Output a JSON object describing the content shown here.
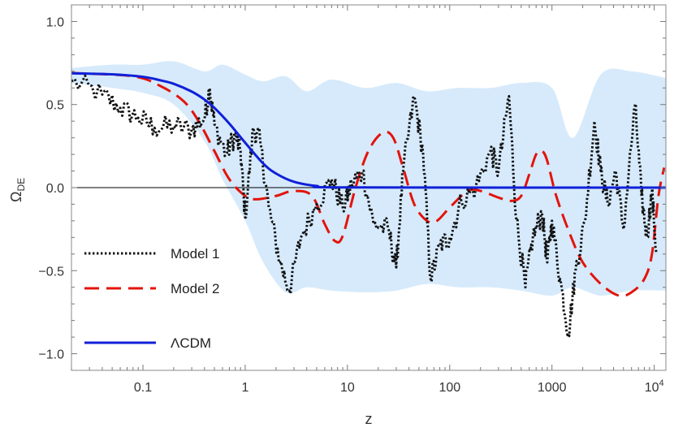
{
  "chart_data": {
    "type": "line",
    "xscale": "log",
    "xlim": [
      0.02,
      13000
    ],
    "ylim": [
      -1.1,
      1.1
    ],
    "xlabel": "z",
    "ylabel_main": "Ω",
    "ylabel_sub": "DE",
    "x_ticks": [
      {
        "value": 0.1,
        "label": "0.1"
      },
      {
        "value": 1,
        "label": "1"
      },
      {
        "value": 10,
        "label": "10"
      },
      {
        "value": 100,
        "label": "100"
      },
      {
        "value": 1000,
        "label": "1000"
      },
      {
        "value": 10000,
        "label": "10",
        "sup": "4"
      }
    ],
    "y_ticks": [
      {
        "value": 1.0,
        "label": "1.0"
      },
      {
        "value": 0.5,
        "label": "0.5"
      },
      {
        "value": 0.0,
        "label": "0.0"
      },
      {
        "value": -0.5,
        "label": "-0.5"
      },
      {
        "value": -1.0,
        "label": "-1.0"
      }
    ],
    "legend_position": "bottom-left",
    "band": {
      "color": "#d6eafb",
      "points": [
        {
          "z": 0.02,
          "lo": 0.63,
          "hi": 0.72
        },
        {
          "z": 0.05,
          "lo": 0.6,
          "hi": 0.74
        },
        {
          "z": 0.1,
          "lo": 0.57,
          "hi": 0.74
        },
        {
          "z": 0.2,
          "lo": 0.5,
          "hi": 0.76
        },
        {
          "z": 0.4,
          "lo": 0.28,
          "hi": 0.7
        },
        {
          "z": 0.6,
          "lo": 0.05,
          "hi": 0.74
        },
        {
          "z": 1.0,
          "lo": -0.2,
          "hi": 0.68
        },
        {
          "z": 1.5,
          "lo": -0.45,
          "hi": 0.64
        },
        {
          "z": 2.5,
          "lo": -0.63,
          "hi": 0.67
        },
        {
          "z": 4,
          "lo": -0.6,
          "hi": 0.58
        },
        {
          "z": 7,
          "lo": -0.62,
          "hi": 0.65
        },
        {
          "z": 15,
          "lo": -0.63,
          "hi": 0.6
        },
        {
          "z": 30,
          "lo": -0.62,
          "hi": 0.63
        },
        {
          "z": 60,
          "lo": -0.58,
          "hi": 0.58
        },
        {
          "z": 120,
          "lo": -0.6,
          "hi": 0.6
        },
        {
          "z": 250,
          "lo": -0.6,
          "hi": 0.6
        },
        {
          "z": 500,
          "lo": -0.62,
          "hi": 0.63
        },
        {
          "z": 1000,
          "lo": -0.65,
          "hi": 0.6
        },
        {
          "z": 1600,
          "lo": -0.6,
          "hi": 0.3
        },
        {
          "z": 3000,
          "lo": -0.65,
          "hi": 0.68
        },
        {
          "z": 6000,
          "lo": -0.62,
          "hi": 0.7
        },
        {
          "z": 13000,
          "lo": -0.62,
          "hi": 0.66
        }
      ]
    },
    "series": [
      {
        "name": "Model 1",
        "color": "#111111",
        "style": "dotted",
        "noise_amplitude": 0.07,
        "points": [
          {
            "z": 0.02,
            "v": 0.64
          },
          {
            "z": 0.04,
            "v": 0.56
          },
          {
            "z": 0.06,
            "v": 0.48
          },
          {
            "z": 0.09,
            "v": 0.42
          },
          {
            "z": 0.13,
            "v": 0.36
          },
          {
            "z": 0.2,
            "v": 0.37
          },
          {
            "z": 0.3,
            "v": 0.35
          },
          {
            "z": 0.4,
            "v": 0.42
          },
          {
            "z": 0.45,
            "v": 0.6
          },
          {
            "z": 0.5,
            "v": 0.38
          },
          {
            "z": 0.65,
            "v": 0.2
          },
          {
            "z": 0.8,
            "v": 0.32
          },
          {
            "z": 0.9,
            "v": 0.22
          },
          {
            "z": 1.0,
            "v": -0.18
          },
          {
            "z": 1.2,
            "v": 0.36
          },
          {
            "z": 1.4,
            "v": 0.28
          },
          {
            "z": 1.7,
            "v": -0.12
          },
          {
            "z": 2.2,
            "v": -0.45
          },
          {
            "z": 2.7,
            "v": -0.62
          },
          {
            "z": 3.5,
            "v": -0.3
          },
          {
            "z": 5,
            "v": -0.1
          },
          {
            "z": 7,
            "v": 0.05
          },
          {
            "z": 9,
            "v": -0.12
          },
          {
            "z": 11,
            "v": 0.02
          },
          {
            "z": 14,
            "v": 0.1
          },
          {
            "z": 18,
            "v": -0.22
          },
          {
            "z": 25,
            "v": -0.25
          },
          {
            "z": 30,
            "v": -0.48
          },
          {
            "z": 35,
            "v": 0.1
          },
          {
            "z": 45,
            "v": 0.55
          },
          {
            "z": 55,
            "v": 0.2
          },
          {
            "z": 65,
            "v": -0.55
          },
          {
            "z": 80,
            "v": -0.35
          },
          {
            "z": 100,
            "v": -0.3
          },
          {
            "z": 130,
            "v": -0.08
          },
          {
            "z": 180,
            "v": 0.0
          },
          {
            "z": 250,
            "v": 0.22
          },
          {
            "z": 300,
            "v": 0.1
          },
          {
            "z": 380,
            "v": 0.55
          },
          {
            "z": 450,
            "v": -0.2
          },
          {
            "z": 550,
            "v": -0.6
          },
          {
            "z": 650,
            "v": -0.3
          },
          {
            "z": 800,
            "v": -0.15
          },
          {
            "z": 900,
            "v": -0.45
          },
          {
            "z": 1000,
            "v": -0.2
          },
          {
            "z": 1200,
            "v": -0.55
          },
          {
            "z": 1450,
            "v": -0.88
          },
          {
            "z": 1700,
            "v": -0.5
          },
          {
            "z": 2100,
            "v": -0.2
          },
          {
            "z": 2600,
            "v": 0.4
          },
          {
            "z": 3000,
            "v": 0.1
          },
          {
            "z": 3500,
            "v": -0.1
          },
          {
            "z": 4200,
            "v": 0.1
          },
          {
            "z": 5000,
            "v": -0.25
          },
          {
            "z": 6500,
            "v": 0.5
          },
          {
            "z": 7500,
            "v": -0.05
          },
          {
            "z": 8500,
            "v": -0.3
          },
          {
            "z": 9500,
            "v": -0.02
          },
          {
            "z": 10500,
            "v": -0.4
          }
        ]
      },
      {
        "name": "Model 2",
        "color": "#e3140c",
        "style": "dashed",
        "points": [
          {
            "z": 0.02,
            "v": 0.69
          },
          {
            "z": 0.08,
            "v": 0.67
          },
          {
            "z": 0.15,
            "v": 0.61
          },
          {
            "z": 0.25,
            "v": 0.52
          },
          {
            "z": 0.35,
            "v": 0.4
          },
          {
            "z": 0.5,
            "v": 0.22
          },
          {
            "z": 0.7,
            "v": 0.05
          },
          {
            "z": 1.0,
            "v": -0.05
          },
          {
            "z": 1.3,
            "v": -0.07
          },
          {
            "z": 2.0,
            "v": -0.05
          },
          {
            "z": 3.0,
            "v": -0.02
          },
          {
            "z": 4.5,
            "v": -0.05
          },
          {
            "z": 6,
            "v": -0.22
          },
          {
            "z": 7.5,
            "v": -0.32
          },
          {
            "z": 9,
            "v": -0.29
          },
          {
            "z": 12,
            "v": 0.0
          },
          {
            "z": 16,
            "v": 0.22
          },
          {
            "z": 22,
            "v": 0.33
          },
          {
            "z": 28,
            "v": 0.3
          },
          {
            "z": 35,
            "v": 0.12
          },
          {
            "z": 45,
            "v": -0.1
          },
          {
            "z": 60,
            "v": -0.2
          },
          {
            "z": 75,
            "v": -0.2
          },
          {
            "z": 100,
            "v": -0.12
          },
          {
            "z": 150,
            "v": -0.02
          },
          {
            "z": 200,
            "v": -0.02
          },
          {
            "z": 300,
            "v": -0.06
          },
          {
            "z": 400,
            "v": -0.08
          },
          {
            "z": 500,
            "v": -0.05
          },
          {
            "z": 600,
            "v": 0.08
          },
          {
            "z": 700,
            "v": 0.2
          },
          {
            "z": 800,
            "v": 0.22
          },
          {
            "z": 900,
            "v": 0.16
          },
          {
            "z": 1100,
            "v": -0.05
          },
          {
            "z": 1500,
            "v": -0.28
          },
          {
            "z": 2000,
            "v": -0.45
          },
          {
            "z": 3000,
            "v": -0.58
          },
          {
            "z": 4500,
            "v": -0.65
          },
          {
            "z": 6000,
            "v": -0.63
          },
          {
            "z": 8000,
            "v": -0.55
          },
          {
            "z": 9500,
            "v": -0.4
          },
          {
            "z": 11000,
            "v": -0.05
          },
          {
            "z": 12500,
            "v": 0.12
          }
        ]
      },
      {
        "name": "ΛCDM",
        "color": "#1020d8",
        "style": "solid",
        "points": [
          {
            "z": 0.02,
            "v": 0.688
          },
          {
            "z": 0.05,
            "v": 0.682
          },
          {
            "z": 0.1,
            "v": 0.667
          },
          {
            "z": 0.15,
            "v": 0.645
          },
          {
            "z": 0.2,
            "v": 0.625
          },
          {
            "z": 0.3,
            "v": 0.578
          },
          {
            "z": 0.4,
            "v": 0.53
          },
          {
            "z": 0.5,
            "v": 0.48
          },
          {
            "z": 0.7,
            "v": 0.385
          },
          {
            "z": 1.0,
            "v": 0.27
          },
          {
            "z": 1.5,
            "v": 0.145
          },
          {
            "z": 2.0,
            "v": 0.085
          },
          {
            "z": 3.0,
            "v": 0.035
          },
          {
            "z": 5.0,
            "v": 0.01
          },
          {
            "z": 10,
            "v": 0.001
          },
          {
            "z": 13000,
            "v": 0.0
          }
        ]
      }
    ]
  }
}
